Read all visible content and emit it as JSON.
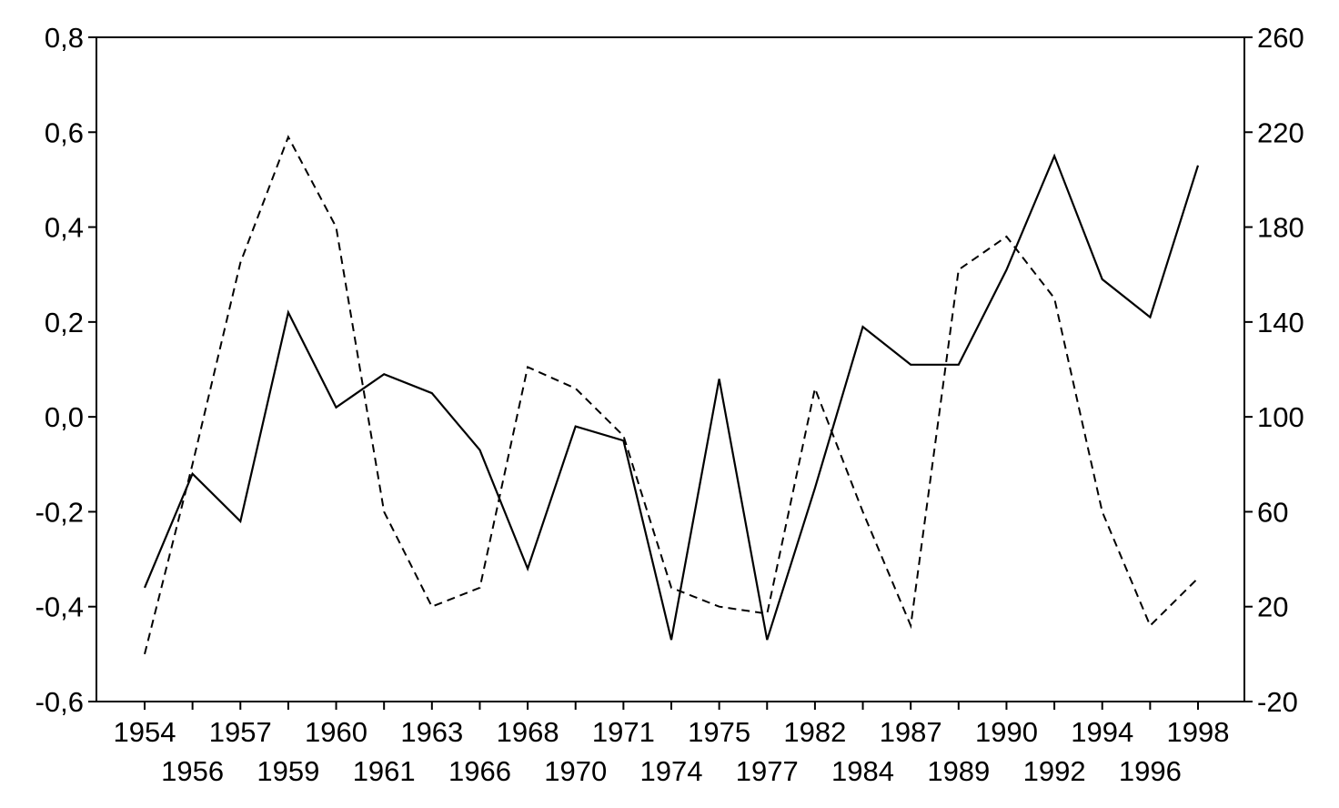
{
  "chart_data": {
    "type": "line",
    "x": [
      "1954",
      "1956",
      "1957",
      "1959",
      "1960",
      "1961",
      "1963",
      "1966",
      "1968",
      "1970",
      "1971",
      "1974",
      "1975",
      "1977",
      "1982",
      "1984",
      "1987",
      "1989",
      "1990",
      "1992",
      "1994",
      "1996",
      "1998"
    ],
    "series": [
      {
        "axis": "left",
        "style": "solid",
        "values": [
          -0.36,
          -0.12,
          -0.22,
          0.22,
          0.02,
          0.09,
          0.05,
          -0.07,
          -0.32,
          -0.02,
          -0.05,
          -0.47,
          0.08,
          -0.47,
          -0.15,
          0.19,
          0.11,
          0.11,
          0.31,
          0.55,
          0.29,
          0.21,
          0.53
        ]
      },
      {
        "axis": "right",
        "style": "dashed",
        "values": [
          0,
          80,
          165,
          218,
          180,
          60,
          20,
          28,
          121,
          112,
          92,
          28,
          20,
          17,
          112,
          60,
          12,
          162,
          176,
          150,
          60,
          12,
          32
        ]
      }
    ],
    "y_left": {
      "lim": [
        -0.6,
        0.8
      ],
      "ticks": [
        -0.6,
        -0.4,
        -0.2,
        0.0,
        0.2,
        0.4,
        0.6,
        0.8
      ],
      "tick_labels": [
        "-0,6",
        "-0,4",
        "-0,2",
        "0,0",
        "0,2",
        "0,4",
        "0,6",
        "0,8"
      ]
    },
    "y_right": {
      "lim": [
        -20,
        260
      ],
      "ticks": [
        -20,
        20,
        60,
        100,
        140,
        180,
        220,
        260
      ],
      "tick_labels": [
        "-20",
        "20",
        "60",
        "100",
        "140",
        "180",
        "220",
        "260"
      ]
    },
    "grid": false,
    "title": "",
    "xlabel": "",
    "ylabel": ""
  }
}
